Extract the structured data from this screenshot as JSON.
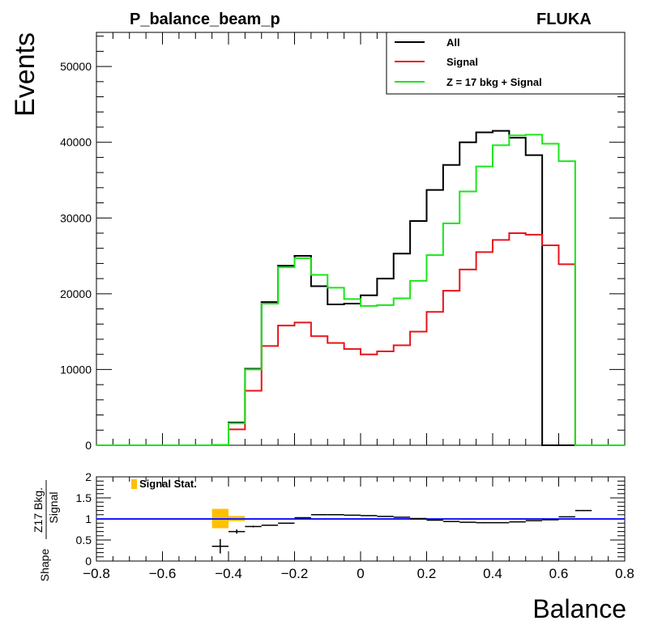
{
  "chart_data": [
    {
      "type": "line",
      "title": "P_balance_beam_p",
      "label_right": "FLUKA",
      "xlabel": "Balance",
      "ylabel": "Events",
      "xlim": [
        -0.8,
        0.8
      ],
      "ylim": [
        0,
        54500
      ],
      "yticks": [
        0,
        10000,
        20000,
        30000,
        40000,
        50000
      ],
      "legend_position": "top-right",
      "bin_edges": [
        -0.8,
        -0.75,
        -0.7,
        -0.65,
        -0.6,
        -0.55,
        -0.5,
        -0.45,
        -0.4,
        -0.35,
        -0.3,
        -0.25,
        -0.2,
        -0.15,
        -0.1,
        -0.05,
        0.0,
        0.05,
        0.1,
        0.15,
        0.2,
        0.25,
        0.3,
        0.35,
        0.4,
        0.45,
        0.5,
        0.55,
        0.6,
        0.65,
        0.7,
        0.75,
        0.8
      ],
      "series": [
        {
          "name": "All",
          "color": "#000000",
          "values": [
            0,
            0,
            0,
            0,
            0,
            0,
            0,
            50,
            3000,
            10100,
            18900,
            23700,
            25000,
            21000,
            18600,
            18700,
            19800,
            22000,
            25300,
            29600,
            33700,
            37000,
            40000,
            41300,
            41500,
            40600,
            38300,
            0,
            0,
            0,
            0,
            0
          ]
        },
        {
          "name": "Signal",
          "color": "#e8141b",
          "values": [
            0,
            0,
            0,
            0,
            0,
            0,
            0,
            20,
            2100,
            7200,
            13100,
            15800,
            16200,
            14400,
            13500,
            12700,
            12000,
            12400,
            13200,
            15000,
            17600,
            20400,
            23200,
            25500,
            27100,
            28000,
            27800,
            26400,
            23900,
            0,
            0,
            0
          ]
        },
        {
          "name": "Z = 17 bkg + Signal",
          "color": "#19e619",
          "values": [
            0,
            0,
            0,
            0,
            0,
            0,
            0,
            50,
            2900,
            10000,
            18700,
            23500,
            24700,
            22500,
            20800,
            19300,
            18400,
            18500,
            19400,
            21700,
            25100,
            29300,
            33500,
            36800,
            39600,
            40900,
            41000,
            39800,
            37500,
            0,
            0,
            0
          ]
        }
      ]
    },
    {
      "type": "scatter",
      "ylabel": "Shape Z17 Bkg. / Signal",
      "ylabel_shape": "Shape",
      "ylabel_num": "Z17 Bkg.",
      "ylabel_den": "Signal",
      "xlim": [
        -0.8,
        0.8
      ],
      "ylim": [
        0,
        2
      ],
      "xticks": [
        "−0.8",
        "−0.6",
        "−0.4",
        "−0.2",
        "0",
        "0.2",
        "0.4",
        "0.6",
        "0.8"
      ],
      "yticks": [
        "0",
        "0.5",
        "1",
        "1.5",
        "2"
      ],
      "reference_line": 1,
      "reference_color": "#1a1aff",
      "legend": "Signal Stat.",
      "band_color": "#ffc000",
      "band": [
        {
          "x0": -0.45,
          "x1": -0.4,
          "y0": 0.78,
          "y1": 1.24
        },
        {
          "x0": -0.4,
          "x1": -0.35,
          "y0": 0.95,
          "y1": 1.07
        }
      ],
      "points": [
        {
          "x": -0.425,
          "y": 0.35,
          "err": 0.17
        },
        {
          "x": -0.375,
          "y": 0.7,
          "err": 0.05
        },
        {
          "x": -0.325,
          "y": 0.82,
          "err": 0.02
        },
        {
          "x": -0.275,
          "y": 0.85,
          "err": 0.01
        },
        {
          "x": -0.225,
          "y": 0.9,
          "err": 0.01
        },
        {
          "x": -0.175,
          "y": 1.03,
          "err": 0.01
        },
        {
          "x": -0.125,
          "y": 1.1,
          "err": 0.01
        },
        {
          "x": -0.075,
          "y": 1.1,
          "err": 0.01
        },
        {
          "x": -0.025,
          "y": 1.09,
          "err": 0.01
        },
        {
          "x": 0.025,
          "y": 1.08,
          "err": 0.01
        },
        {
          "x": 0.075,
          "y": 1.06,
          "err": 0.01
        },
        {
          "x": 0.125,
          "y": 1.04,
          "err": 0.01
        },
        {
          "x": 0.175,
          "y": 1.01,
          "err": 0.01
        },
        {
          "x": 0.225,
          "y": 0.97,
          "err": 0.01
        },
        {
          "x": 0.275,
          "y": 0.94,
          "err": 0.01
        },
        {
          "x": 0.325,
          "y": 0.92,
          "err": 0.01
        },
        {
          "x": 0.375,
          "y": 0.91,
          "err": 0.01
        },
        {
          "x": 0.425,
          "y": 0.91,
          "err": 0.01
        },
        {
          "x": 0.475,
          "y": 0.93,
          "err": 0.01
        },
        {
          "x": 0.525,
          "y": 0.96,
          "err": 0.01
        },
        {
          "x": 0.575,
          "y": 0.98,
          "err": 0.01
        },
        {
          "x": 0.625,
          "y": 1.05,
          "err": 0.01
        },
        {
          "x": 0.675,
          "y": 1.2,
          "err": 0.01
        }
      ]
    }
  ]
}
